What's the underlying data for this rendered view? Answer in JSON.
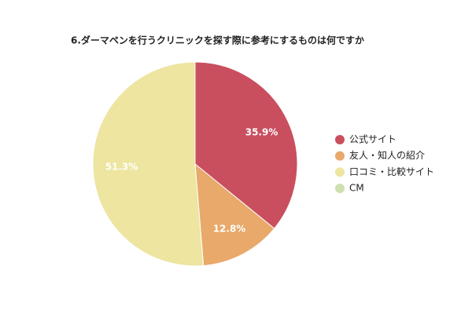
{
  "chart_data": {
    "type": "pie",
    "title": "6.ダーマペンを行うクリニックを探す際に参考にするものは何ですか",
    "categories": [
      "公式サイト",
      "友人・知人の紹介",
      "口コミ・比較サイト",
      "CM"
    ],
    "values": [
      35.9,
      12.8,
      51.3,
      0
    ],
    "value_labels": [
      "35.9%",
      "12.8%",
      "51.3%",
      null
    ],
    "colors": [
      "#c94f5f",
      "#e8a96a",
      "#ede5a0",
      "#cfe0b0"
    ],
    "legend": "right"
  }
}
